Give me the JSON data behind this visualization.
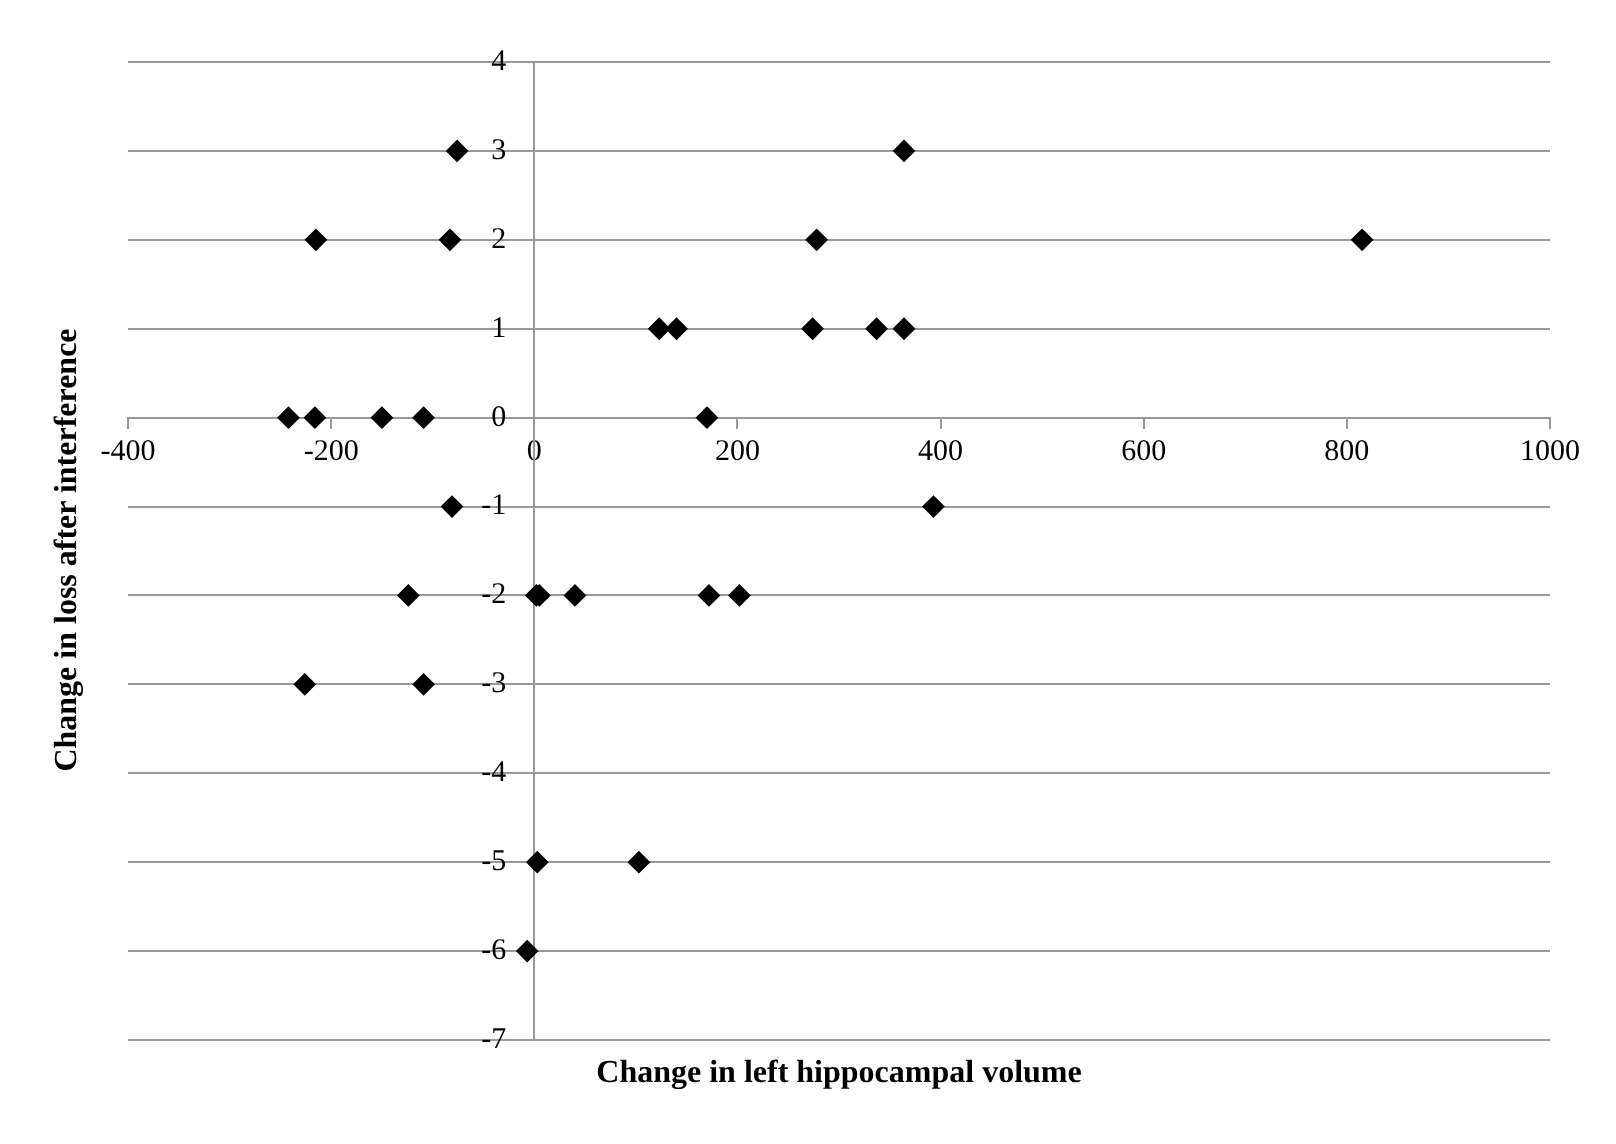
{
  "chart_data": {
    "type": "scatter",
    "xlabel": "Change in left hippocampal volume",
    "ylabel": "Change in loss after interference",
    "x": [
      -76,
      364,
      -215,
      -83,
      278,
      815,
      123,
      140,
      274,
      337,
      364,
      -242,
      -216,
      -150,
      -109,
      170,
      -81,
      393,
      -124,
      2,
      5,
      40,
      172,
      202,
      -226,
      -109,
      3,
      103,
      -7
    ],
    "values": [
      3,
      3,
      2,
      2,
      2,
      2,
      1,
      1,
      1,
      1,
      1,
      0,
      0,
      0,
      0,
      0,
      -1,
      -1,
      -2,
      -2,
      -2,
      -2,
      -2,
      -2,
      -3,
      -3,
      -5,
      -5,
      -6
    ],
    "color": "#000000",
    "marker": "diamond",
    "grid": "y",
    "xlim": [
      -400,
      1000
    ],
    "xticks": [
      -400,
      -200,
      0,
      200,
      400,
      600,
      800,
      1000
    ],
    "ylim": [
      -7,
      4
    ],
    "yticks": [
      -7,
      -6,
      -5,
      -4,
      -3,
      -2,
      -1,
      0,
      1,
      2,
      3,
      4
    ]
  }
}
